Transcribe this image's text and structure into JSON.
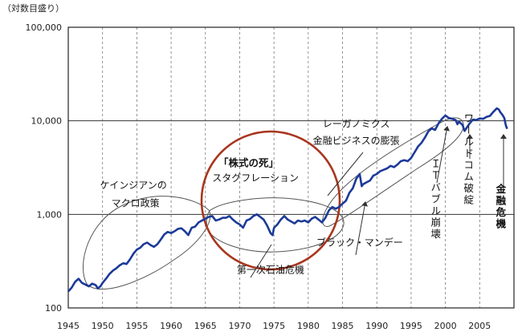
{
  "chart_data": {
    "type": "line",
    "yscale": "log",
    "unit_label": "（対数目盛り）",
    "ylim": [
      100,
      100000
    ],
    "y_ticks": [
      {
        "v": 100,
        "label": "100"
      },
      {
        "v": 1000,
        "label": "1,000"
      },
      {
        "v": 10000,
        "label": "10,000"
      },
      {
        "v": 100000,
        "label": "100,000"
      }
    ],
    "xlim": [
      1945,
      2010
    ],
    "x_ticks": [
      {
        "v": 1945,
        "label": "1945"
      },
      {
        "v": 1950,
        "label": "1950"
      },
      {
        "v": 1955,
        "label": "1955"
      },
      {
        "v": 1960,
        "label": "1960"
      },
      {
        "v": 1965,
        "label": "1965"
      },
      {
        "v": 1970,
        "label": "1970"
      },
      {
        "v": 1975,
        "label": "1975"
      },
      {
        "v": 1980,
        "label": "1980"
      },
      {
        "v": 1985,
        "label": "1985"
      },
      {
        "v": 1990,
        "label": "1990"
      },
      {
        "v": 1995,
        "label": "1995"
      },
      {
        "v": 2000,
        "label": "2000"
      },
      {
        "v": 2005,
        "label": "2005"
      }
    ],
    "grid": {
      "vertical": true,
      "horizontal": true
    },
    "series": [
      {
        "color": "#1c3a99",
        "points": [
          [
            1945.0,
            150
          ],
          [
            1945.5,
            165
          ],
          [
            1946.0,
            190
          ],
          [
            1946.5,
            205
          ],
          [
            1947.0,
            185
          ],
          [
            1947.5,
            178
          ],
          [
            1948.0,
            170
          ],
          [
            1948.5,
            182
          ],
          [
            1949.0,
            175
          ],
          [
            1949.3,
            162
          ],
          [
            1949.7,
            170
          ],
          [
            1950.0,
            185
          ],
          [
            1950.5,
            205
          ],
          [
            1951.0,
            230
          ],
          [
            1951.5,
            250
          ],
          [
            1952.0,
            265
          ],
          [
            1952.5,
            285
          ],
          [
            1953.0,
            300
          ],
          [
            1953.5,
            295
          ],
          [
            1954.0,
            330
          ],
          [
            1954.5,
            380
          ],
          [
            1955.0,
            420
          ],
          [
            1955.5,
            440
          ],
          [
            1956.0,
            480
          ],
          [
            1956.5,
            500
          ],
          [
            1957.0,
            470
          ],
          [
            1957.5,
            450
          ],
          [
            1958.0,
            480
          ],
          [
            1958.5,
            540
          ],
          [
            1959.0,
            610
          ],
          [
            1959.5,
            650
          ],
          [
            1960.0,
            630
          ],
          [
            1960.5,
            660
          ],
          [
            1961.0,
            700
          ],
          [
            1961.5,
            710
          ],
          [
            1962.0,
            660
          ],
          [
            1962.5,
            600
          ],
          [
            1963.0,
            720
          ],
          [
            1963.5,
            740
          ],
          [
            1964.0,
            820
          ],
          [
            1964.5,
            860
          ],
          [
            1965.0,
            900
          ],
          [
            1965.5,
            940
          ],
          [
            1966.0,
            960
          ],
          [
            1966.5,
            860
          ],
          [
            1967.0,
            880
          ],
          [
            1967.5,
            920
          ],
          [
            1968.0,
            920
          ],
          [
            1968.5,
            960
          ],
          [
            1969.0,
            880
          ],
          [
            1969.5,
            820
          ],
          [
            1970.0,
            780
          ],
          [
            1970.5,
            720
          ],
          [
            1971.0,
            860
          ],
          [
            1971.5,
            890
          ],
          [
            1972.0,
            960
          ],
          [
            1972.5,
            1000
          ],
          [
            1973.0,
            940
          ],
          [
            1973.5,
            880
          ],
          [
            1974.0,
            760
          ],
          [
            1974.5,
            630
          ],
          [
            1974.8,
            600
          ],
          [
            1975.0,
            720
          ],
          [
            1975.5,
            780
          ],
          [
            1976.0,
            880
          ],
          [
            1976.5,
            960
          ],
          [
            1977.0,
            880
          ],
          [
            1977.5,
            840
          ],
          [
            1978.0,
            800
          ],
          [
            1978.5,
            860
          ],
          [
            1979.0,
            840
          ],
          [
            1979.5,
            860
          ],
          [
            1980.0,
            820
          ],
          [
            1980.5,
            900
          ],
          [
            1981.0,
            940
          ],
          [
            1981.5,
            880
          ],
          [
            1982.0,
            820
          ],
          [
            1982.5,
            920
          ],
          [
            1983.0,
            1100
          ],
          [
            1983.5,
            1200
          ],
          [
            1984.0,
            1150
          ],
          [
            1984.5,
            1200
          ],
          [
            1985.0,
            1300
          ],
          [
            1985.5,
            1400
          ],
          [
            1986.0,
            1700
          ],
          [
            1986.5,
            1900
          ],
          [
            1987.0,
            2400
          ],
          [
            1987.5,
            2700
          ],
          [
            1987.8,
            2000
          ],
          [
            1988.0,
            2100
          ],
          [
            1988.5,
            2200
          ],
          [
            1989.0,
            2300
          ],
          [
            1989.5,
            2600
          ],
          [
            1990.0,
            2700
          ],
          [
            1990.5,
            2900
          ],
          [
            1991.0,
            3000
          ],
          [
            1991.5,
            3100
          ],
          [
            1992.0,
            3300
          ],
          [
            1992.5,
            3200
          ],
          [
            1993.0,
            3400
          ],
          [
            1993.5,
            3700
          ],
          [
            1994.0,
            3800
          ],
          [
            1994.5,
            3700
          ],
          [
            1995.0,
            4000
          ],
          [
            1995.5,
            4600
          ],
          [
            1996.0,
            5300
          ],
          [
            1996.5,
            5800
          ],
          [
            1997.0,
            6600
          ],
          [
            1997.5,
            7700
          ],
          [
            1998.0,
            8300
          ],
          [
            1998.5,
            8000
          ],
          [
            1999.0,
            9400
          ],
          [
            1999.5,
            10500
          ],
          [
            2000.0,
            11400
          ],
          [
            2000.5,
            10700
          ],
          [
            2001.0,
            10500
          ],
          [
            2001.5,
            10200
          ],
          [
            2001.75,
            9200
          ],
          [
            2002.0,
            9800
          ],
          [
            2002.5,
            9000
          ],
          [
            2002.8,
            7800
          ],
          [
            2003.0,
            8200
          ],
          [
            2003.5,
            9300
          ],
          [
            2004.0,
            10300
          ],
          [
            2004.5,
            10200
          ],
          [
            2005.0,
            10600
          ],
          [
            2005.5,
            10500
          ],
          [
            2006.0,
            11000
          ],
          [
            2006.5,
            11300
          ],
          [
            2007.0,
            12500
          ],
          [
            2007.5,
            13600
          ],
          [
            2007.8,
            13200
          ],
          [
            2008.0,
            12400
          ],
          [
            2008.3,
            11600
          ],
          [
            2008.6,
            10700
          ],
          [
            2008.8,
            9000
          ],
          [
            2009.0,
            8200
          ]
        ]
      }
    ],
    "annotations": [
      {
        "text": "ケインジアンの",
        "style": "h",
        "x": 1954.5,
        "y": 1900
      },
      {
        "text": "マクロ政策",
        "style": "h",
        "x": 1954.8,
        "y": 1220
      },
      {
        "text": "「株式の死」",
        "style": "hb",
        "x": 1971.3,
        "y": 3250
      },
      {
        "text": "スタグフレーション",
        "style": "h",
        "x": 1972.3,
        "y": 2250
      },
      {
        "text": "レーガノミクス",
        "style": "h",
        "x": 1987.0,
        "y": 8600
      },
      {
        "text": "金融ビジネスの膨張",
        "style": "h",
        "x": 1987.0,
        "y": 5650
      },
      {
        "text": "ブラック・マンデー",
        "style": "h",
        "x": 1987.5,
        "y": 460
      },
      {
        "text": "第一次石油危機",
        "style": "h",
        "x": 1974.5,
        "y": 235
      },
      {
        "text": "ＩＴバブル崩壊",
        "style": "v",
        "x": 1998.5,
        "y": 1450
      },
      {
        "text": "ワールドコム破綻",
        "style": "v",
        "x": 2003.3,
        "y": 3850
      },
      {
        "text": "金融危機",
        "style": "vb",
        "x": 2008.0,
        "y": 1200
      }
    ]
  }
}
